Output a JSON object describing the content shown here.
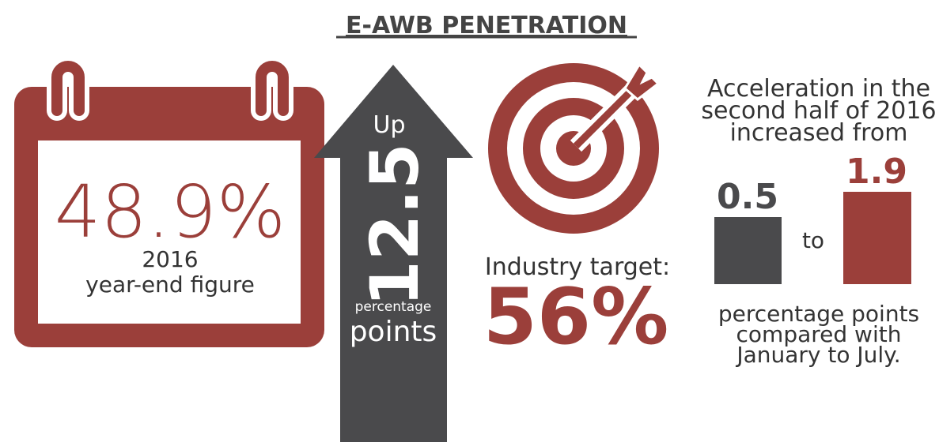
{
  "title": "E-AWB PENETRATION",
  "calendar": {
    "value": "48.9%",
    "caption_lines": [
      "2016",
      "year-end figure"
    ]
  },
  "arrow": {
    "prefix": "Up",
    "value": "12.5",
    "unit_small": "percentage",
    "unit": "points"
  },
  "target": {
    "label": "Industry target:",
    "value": "56%"
  },
  "acceleration": {
    "heading_lines": [
      "Acceleration in the",
      "second half of 2016",
      "increased from"
    ],
    "from": "0.5",
    "connector": "to",
    "to": "1.9",
    "footer_lines": [
      "percentage points",
      "compared with",
      "January to July."
    ]
  }
}
